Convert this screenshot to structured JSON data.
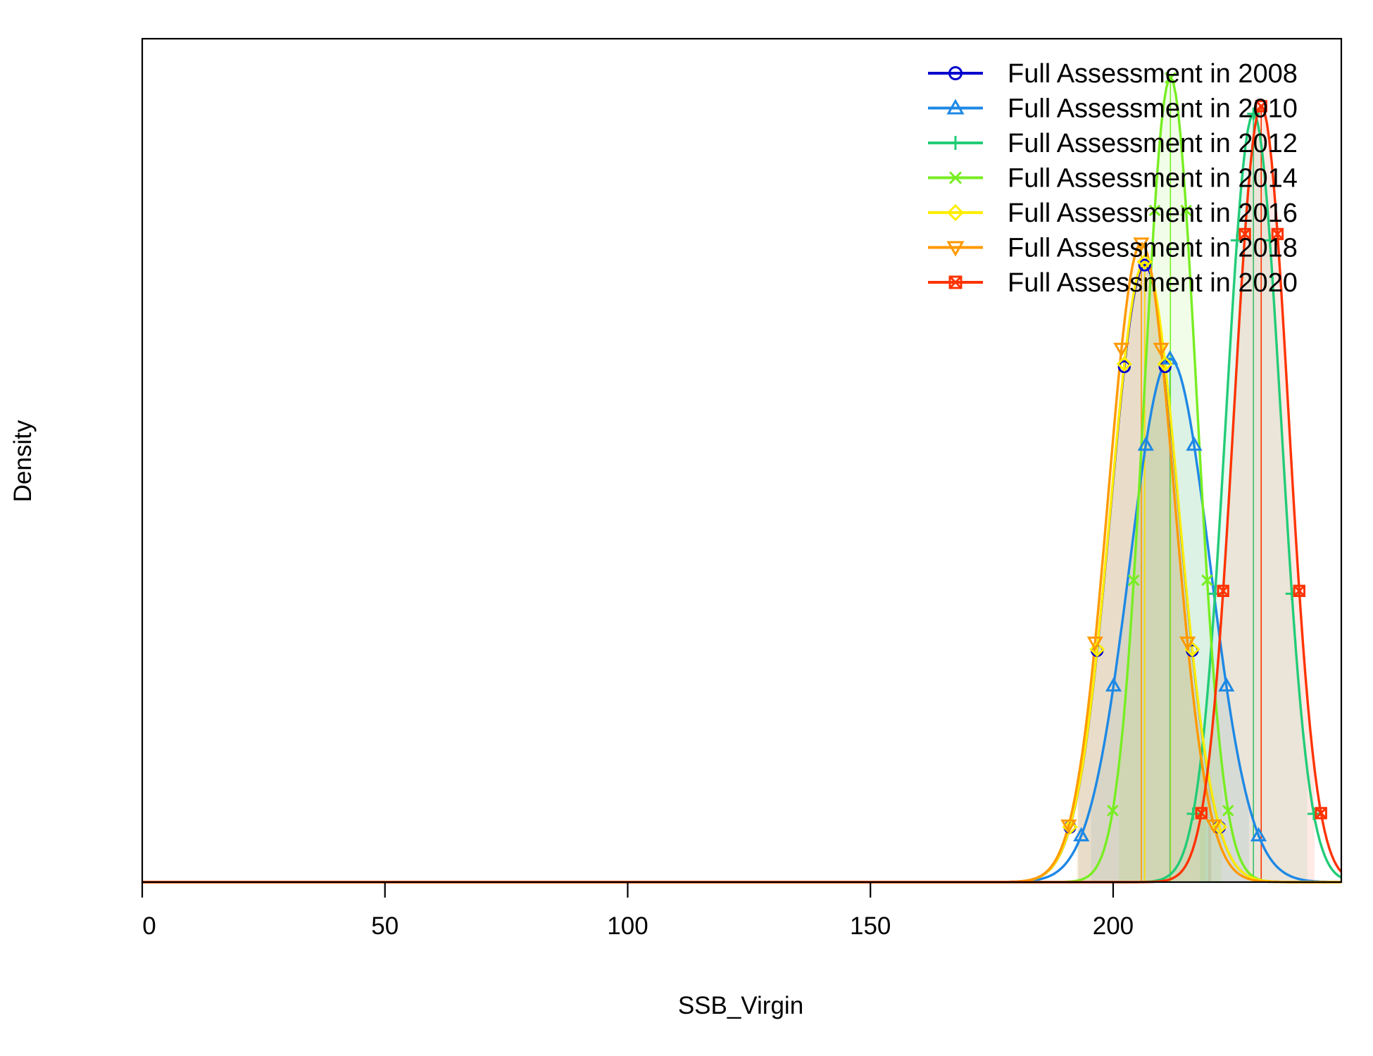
{
  "chart_data": {
    "type": "line",
    "title": "",
    "xlabel": "SSB_Virgin",
    "ylabel": "Density",
    "xlim": [
      0,
      247
    ],
    "x_ticks": [
      0,
      50,
      100,
      150,
      200
    ],
    "y_ticks_shown": false,
    "legend_position": "top-right",
    "series": [
      {
        "name": "Full Assessment in 2008",
        "color": "#0000cc",
        "marker": "circle",
        "mean": 206.5,
        "sd": 7.0,
        "peak_density": 0.0567
      },
      {
        "name": "Full Assessment in 2010",
        "color": "#1e88e5",
        "marker": "triangle-up",
        "mean": 211.7,
        "sd": 8.3,
        "peak_density": 0.0481
      },
      {
        "name": "Full Assessment in 2012",
        "color": "#22cc77",
        "marker": "plus",
        "mean": 228.9,
        "sd": 5.65,
        "peak_density": 0.0706
      },
      {
        "name": "Full Assessment in 2014",
        "color": "#77ee22",
        "marker": "x",
        "mean": 211.8,
        "sd": 5.4,
        "peak_density": 0.0739
      },
      {
        "name": "Full Assessment in 2016",
        "color": "#ffee00",
        "marker": "diamond",
        "mean": 206.5,
        "sd": 7.0,
        "peak_density": 0.057
      },
      {
        "name": "Full Assessment in 2018",
        "color": "#ff9900",
        "marker": "triangle-down",
        "mean": 205.8,
        "sd": 6.8,
        "peak_density": 0.0587
      },
      {
        "name": "Full Assessment in 2020",
        "color": "#ff3300",
        "marker": "square-x",
        "mean": 230.5,
        "sd": 5.6,
        "peak_density": 0.0713
      }
    ],
    "ylim": [
      0,
      0.0775
    ]
  }
}
